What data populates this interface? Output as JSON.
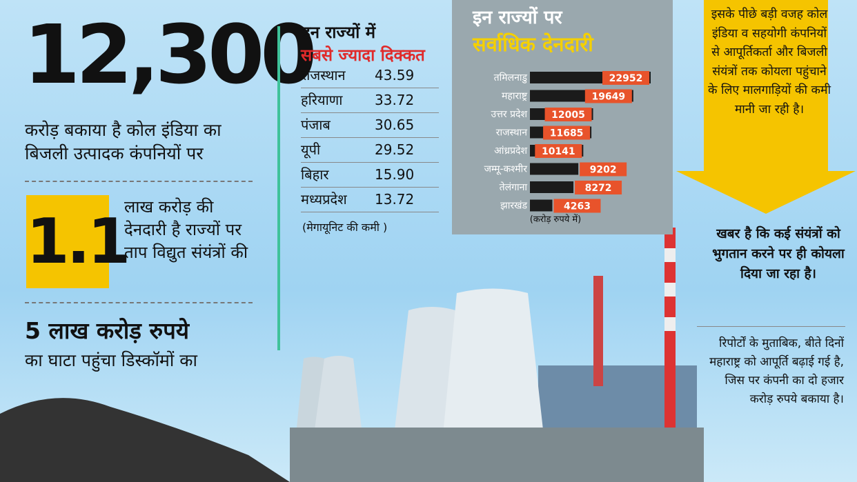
{
  "left": {
    "headline_number": "12,300",
    "headline_text": "करोड़ बकाया है कोल इंडिया का बिजली उत्पादक कंपनियों पर",
    "box_number": "1.1",
    "box_text": "लाख करोड़ की देनदारी है राज्यों पर ताप विद्युत संयंत्रों की",
    "bottom_title": "5 लाख करोड़ रुपये",
    "bottom_text": "का घाटा पहुंचा डिस्कॉमों का"
  },
  "table": {
    "title": "इन राज्यों में",
    "subtitle": "सबसे ज्यादा दिक्कत",
    "rows": [
      [
        "राजस्थान",
        "43.59"
      ],
      [
        "हरियाणा",
        "33.72"
      ],
      [
        "पंजाब",
        "30.65"
      ],
      [
        "यूपी",
        "29.52"
      ],
      [
        "बिहार",
        "15.90"
      ],
      [
        "मध्यप्रदेश",
        "13.72"
      ]
    ],
    "note": "(मेगायूनिट की कमी )"
  },
  "chart_data": {
    "type": "bar",
    "orientation": "horizontal",
    "title": "इन राज्यों पर",
    "subtitle": "सर्वाधिक देनदारी",
    "categories": [
      "तमिलनाडु",
      "महाराष्ट्र",
      "उत्तर प्रदेश",
      "राजस्थान",
      "आंध्रप्रदेश",
      "जम्मू-कश्मीर",
      "तेलंगाना",
      "झारखंड"
    ],
    "values": [
      22952,
      19649,
      12005,
      11685,
      10141,
      9202,
      8272,
      4263
    ],
    "note": "(करोड़ रुपये में)",
    "bar_color": "#1b1b1b",
    "label_color": "#e8532b"
  },
  "right": {
    "callout": "इसके पीछे बड़ी वजह कोल इंडिया व सहयोगी कंपनियों से आपूर्तिकर्ता और बिजली संयंत्रों तक कोयला पहुंचाने के लिए मालगाड़ियों की कमी मानी जा रही है।",
    "quote": "खबर है कि कई संयंत्रों को भुगतान करने पर ही कोयला दिया जा रहा है।",
    "report": "रिपोर्टों के मुताबिक, बीते दिनों महाराष्ट्र को आपूर्ति बढ़ाई गई है, जिस पर कंपनी का दो हजार करोड़ रुपये बकाया है।"
  }
}
